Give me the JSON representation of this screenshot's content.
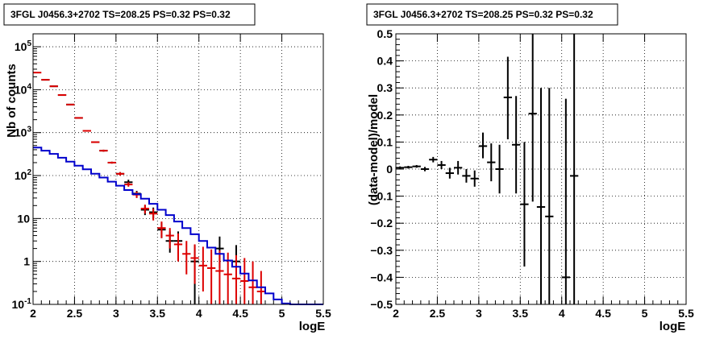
{
  "chart_data": [
    {
      "type": "scatter",
      "title": "3FGL J0456.3+2702 TS=208.25 PS=0.32 PS=0.32",
      "xlabel": "logE",
      "ylabel": "Nb of counts",
      "xlim": [
        2,
        5.5
      ],
      "ylim": [
        0.1,
        200000
      ],
      "yscale": "log",
      "grid": true,
      "x_ticks": [
        "2",
        "2.5",
        "3",
        "3.5",
        "4",
        "4.5",
        "5",
        "5.5"
      ],
      "y_ticks": [
        {
          "base": "10",
          "exp": "-1",
          "value": 0.1
        },
        {
          "base": "1",
          "exp": "",
          "value": 1
        },
        {
          "base": "10",
          "exp": "",
          "value": 10
        },
        {
          "base": "10",
          "exp": "2",
          "value": 100
        },
        {
          "base": "10",
          "exp": "3",
          "value": 1000
        },
        {
          "base": "10",
          "exp": "4",
          "value": 10000
        },
        {
          "base": "10",
          "exp": "5",
          "value": 100000
        }
      ],
      "series": [
        {
          "color": "#000000",
          "style": "errorbar",
          "points": [
            {
              "x": 2.15,
              "y": 17000,
              "lo": 16800,
              "hi": 17200
            },
            {
              "x": 2.25,
              "y": 12000,
              "lo": 11800,
              "hi": 12200
            },
            {
              "x": 2.35,
              "y": 7500,
              "lo": 7350,
              "hi": 7650
            },
            {
              "x": 2.45,
              "y": 4500,
              "lo": 4400,
              "hi": 4600
            },
            {
              "x": 2.55,
              "y": 2200,
              "lo": 2150,
              "hi": 2250
            },
            {
              "x": 2.65,
              "y": 1100,
              "lo": 1060,
              "hi": 1140
            },
            {
              "x": 2.75,
              "y": 600,
              "lo": 580,
              "hi": 620
            },
            {
              "x": 2.85,
              "y": 380,
              "lo": 360,
              "hi": 400
            },
            {
              "x": 2.95,
              "y": 200,
              "lo": 190,
              "hi": 210
            },
            {
              "x": 3.05,
              "y": 110,
              "lo": 100,
              "hi": 120
            },
            {
              "x": 3.15,
              "y": 70,
              "lo": 62,
              "hi": 80
            },
            {
              "x": 3.25,
              "y": 38,
              "lo": 32,
              "hi": 44
            },
            {
              "x": 3.35,
              "y": 16,
              "lo": 12,
              "hi": 20
            },
            {
              "x": 3.45,
              "y": 14,
              "lo": 10,
              "hi": 18
            },
            {
              "x": 3.55,
              "y": 5.5,
              "lo": 3.5,
              "hi": 8
            },
            {
              "x": 3.65,
              "y": 3,
              "lo": 1.6,
              "hi": 5
            },
            {
              "x": 3.75,
              "y": 3,
              "lo": 1.6,
              "hi": 5
            },
            {
              "x": 3.95,
              "y": 1,
              "lo": 0.1,
              "hi": 2.4
            },
            {
              "x": 4.25,
              "y": 2,
              "lo": 0.7,
              "hi": 3.8
            },
            {
              "x": 4.45,
              "y": 1,
              "lo": 0.1,
              "hi": 2.4
            }
          ]
        },
        {
          "color": "#dd0000",
          "style": "errorbar",
          "points": [
            {
              "x": 2.05,
              "y": 25000,
              "lo": 24500,
              "hi": 25500
            },
            {
              "x": 2.15,
              "y": 17000,
              "lo": 16700,
              "hi": 17300
            },
            {
              "x": 2.25,
              "y": 12000,
              "lo": 11800,
              "hi": 12200
            },
            {
              "x": 2.35,
              "y": 7500,
              "lo": 7350,
              "hi": 7650
            },
            {
              "x": 2.45,
              "y": 4500,
              "lo": 4400,
              "hi": 4600
            },
            {
              "x": 2.55,
              "y": 2200,
              "lo": 2150,
              "hi": 2250
            },
            {
              "x": 2.65,
              "y": 1100,
              "lo": 1060,
              "hi": 1140
            },
            {
              "x": 2.75,
              "y": 600,
              "lo": 580,
              "hi": 620
            },
            {
              "x": 2.85,
              "y": 380,
              "lo": 360,
              "hi": 400
            },
            {
              "x": 2.95,
              "y": 200,
              "lo": 190,
              "hi": 210
            },
            {
              "x": 3.05,
              "y": 110,
              "lo": 100,
              "hi": 120
            },
            {
              "x": 3.15,
              "y": 62,
              "lo": 55,
              "hi": 70
            },
            {
              "x": 3.25,
              "y": 36,
              "lo": 30,
              "hi": 42
            },
            {
              "x": 3.35,
              "y": 17,
              "lo": 13,
              "hi": 21
            },
            {
              "x": 3.45,
              "y": 13,
              "lo": 9,
              "hi": 17
            },
            {
              "x": 3.55,
              "y": 6,
              "lo": 3.5,
              "hi": 8.5
            },
            {
              "x": 3.65,
              "y": 4,
              "lo": 2,
              "hi": 6
            },
            {
              "x": 3.75,
              "y": 2.5,
              "lo": 1,
              "hi": 4.5
            },
            {
              "x": 3.85,
              "y": 1.5,
              "lo": 0.5,
              "hi": 3
            },
            {
              "x": 3.95,
              "y": 1.2,
              "lo": 0.3,
              "hi": 2.5
            },
            {
              "x": 4.05,
              "y": 0.8,
              "lo": 0.2,
              "hi": 2.2
            },
            {
              "x": 4.15,
              "y": 0.7,
              "lo": 0.1,
              "hi": 1.9
            },
            {
              "x": 4.25,
              "y": 0.6,
              "lo": 0.1,
              "hi": 1.8
            },
            {
              "x": 4.35,
              "y": 0.5,
              "lo": 0.1,
              "hi": 1.6
            },
            {
              "x": 4.45,
              "y": 0.4,
              "lo": 0.1,
              "hi": 1.4
            },
            {
              "x": 4.55,
              "y": 0.35,
              "lo": 0.1,
              "hi": 1.2
            },
            {
              "x": 4.65,
              "y": 0.25,
              "lo": 0.1,
              "hi": 1.0
            },
            {
              "x": 4.75,
              "y": 0.2,
              "lo": 0.1,
              "hi": 0.6
            }
          ]
        },
        {
          "color": "#0000cc",
          "style": "step",
          "bin_width": 0.1,
          "points": [
            {
              "x": 2.05,
              "y": 450
            },
            {
              "x": 2.15,
              "y": 380
            },
            {
              "x": 2.25,
              "y": 320
            },
            {
              "x": 2.35,
              "y": 260
            },
            {
              "x": 2.45,
              "y": 210
            },
            {
              "x": 2.55,
              "y": 170
            },
            {
              "x": 2.65,
              "y": 140
            },
            {
              "x": 2.75,
              "y": 110
            },
            {
              "x": 2.85,
              "y": 90
            },
            {
              "x": 2.95,
              "y": 72
            },
            {
              "x": 3.05,
              "y": 58
            },
            {
              "x": 3.15,
              "y": 46
            },
            {
              "x": 3.25,
              "y": 37
            },
            {
              "x": 3.35,
              "y": 29
            },
            {
              "x": 3.45,
              "y": 22
            },
            {
              "x": 3.55,
              "y": 16
            },
            {
              "x": 3.65,
              "y": 12
            },
            {
              "x": 3.75,
              "y": 8.5
            },
            {
              "x": 3.85,
              "y": 6
            },
            {
              "x": 3.95,
              "y": 4.3
            },
            {
              "x": 4.05,
              "y": 3
            },
            {
              "x": 4.15,
              "y": 2.1
            },
            {
              "x": 4.25,
              "y": 1.5
            },
            {
              "x": 4.35,
              "y": 1.05
            },
            {
              "x": 4.45,
              "y": 0.75
            },
            {
              "x": 4.55,
              "y": 0.52
            },
            {
              "x": 4.65,
              "y": 0.36
            },
            {
              "x": 4.75,
              "y": 0.25
            },
            {
              "x": 4.85,
              "y": 0.18
            },
            {
              "x": 4.95,
              "y": 0.13
            },
            {
              "x": 5.05,
              "y": 0.105
            },
            {
              "x": 5.15,
              "y": 0.1
            },
            {
              "x": 5.25,
              "y": 0.1
            },
            {
              "x": 5.35,
              "y": 0.1
            },
            {
              "x": 5.45,
              "y": 0.1
            }
          ]
        }
      ]
    },
    {
      "type": "scatter",
      "title": "3FGL J0456.3+2702 TS=208.25 PS=0.32 PS=0.32",
      "xlabel": "logE",
      "ylabel": "(data-model)/model",
      "xlim": [
        2,
        5.5
      ],
      "ylim": [
        -0.5,
        0.5
      ],
      "yscale": "linear",
      "grid": true,
      "x_ticks": [
        "2",
        "2.5",
        "3",
        "3.5",
        "4",
        "4.5",
        "5",
        "5.5"
      ],
      "y_ticks": [
        "−0.5",
        "−0.4",
        "−0.3",
        "−0.2",
        "−0.1",
        "0",
        "0.1",
        "0.2",
        "0.3",
        "0.4",
        "0.5"
      ],
      "series": [
        {
          "color": "#000000",
          "style": "errorbar",
          "points": [
            {
              "x": 2.05,
              "y": 0.005,
              "lo": 0.0,
              "hi": 0.01
            },
            {
              "x": 2.15,
              "y": 0.007,
              "lo": 0.002,
              "hi": 0.012
            },
            {
              "x": 2.25,
              "y": 0.01,
              "lo": 0.005,
              "hi": 0.015
            },
            {
              "x": 2.35,
              "y": 0.0,
              "lo": -0.008,
              "hi": 0.008
            },
            {
              "x": 2.45,
              "y": 0.035,
              "lo": 0.025,
              "hi": 0.045
            },
            {
              "x": 2.55,
              "y": 0.015,
              "lo": 0.0,
              "hi": 0.03
            },
            {
              "x": 2.65,
              "y": -0.015,
              "lo": -0.035,
              "hi": 0.005
            },
            {
              "x": 2.75,
              "y": 0.005,
              "lo": -0.02,
              "hi": 0.03
            },
            {
              "x": 2.85,
              "y": -0.025,
              "lo": -0.05,
              "hi": 0.0
            },
            {
              "x": 2.95,
              "y": -0.035,
              "lo": -0.065,
              "hi": -0.005
            },
            {
              "x": 3.05,
              "y": 0.085,
              "lo": 0.04,
              "hi": 0.135
            },
            {
              "x": 3.15,
              "y": 0.025,
              "lo": -0.045,
              "hi": 0.095
            },
            {
              "x": 3.25,
              "y": 0.0,
              "lo": -0.09,
              "hi": 0.09
            },
            {
              "x": 3.35,
              "y": 0.265,
              "lo": 0.11,
              "hi": 0.415
            },
            {
              "x": 3.45,
              "y": 0.09,
              "lo": -0.09,
              "hi": 0.27
            },
            {
              "x": 3.55,
              "y": -0.13,
              "lo": -0.36,
              "hi": 0.1
            },
            {
              "x": 3.65,
              "y": 0.205,
              "lo": -0.12,
              "hi": 0.5
            },
            {
              "x": 3.75,
              "y": -0.14,
              "lo": -0.5,
              "hi": 0.3
            },
            {
              "x": 3.85,
              "y": -0.175,
              "lo": -0.5,
              "hi": 0.3
            },
            {
              "x": 4.05,
              "y": -0.4,
              "lo": -0.5,
              "hi": 0.26
            },
            {
              "x": 4.15,
              "y": -0.025,
              "lo": -0.5,
              "hi": 0.5
            }
          ]
        }
      ]
    }
  ]
}
